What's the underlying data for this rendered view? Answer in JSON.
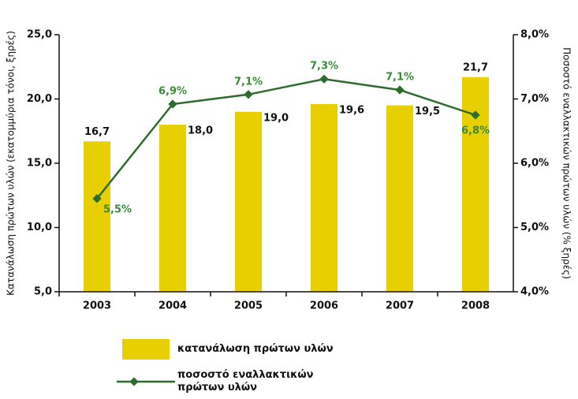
{
  "chart_data": {
    "type": "bar",
    "y_label": "Κατανάλωση πρώτων υλών (εκατομμύρια τόνοι, ξηρές)",
    "y2_label": "Ποσοστό εναλλακτικών πρώτων υλών (% ξηρές)",
    "categories": [
      "2003",
      "2004",
      "2005",
      "2006",
      "2007",
      "2008"
    ],
    "series": [
      {
        "name": "κατανάλωση πρώτων υλών",
        "color": "#e8d000",
        "values": [
          16.7,
          18.0,
          19.0,
          19.6,
          19.5,
          21.7
        ],
        "value_labels": [
          "16,7",
          "18,0",
          "19,0",
          "19,6",
          "19,5",
          "21,7"
        ]
      },
      {
        "name": "ποσοστό εναλλακτικών πρώτων υλών",
        "type": "line",
        "axis": "y2",
        "color": "#2e6b2e",
        "values": [
          5.45,
          6.92,
          7.07,
          7.31,
          7.14,
          6.75
        ],
        "value_labels": [
          "5,5%",
          "6,9%",
          "7,1%",
          "7,3%",
          "7,1%",
          "6,8%"
        ]
      }
    ],
    "ylim": [
      5,
      25
    ],
    "yticks": [
      {
        "value": 5,
        "label": "5,0"
      },
      {
        "value": 10,
        "label": "10,0"
      },
      {
        "value": 15,
        "label": "15,0"
      },
      {
        "value": 20,
        "label": "20,0"
      },
      {
        "value": 25,
        "label": "25,0"
      }
    ],
    "y2lim": [
      4,
      8
    ],
    "y2ticks": [
      {
        "value": 4,
        "label": "4,0%"
      },
      {
        "value": 5,
        "label": "5,0%"
      },
      {
        "value": 6,
        "label": "6,0%"
      },
      {
        "value": 7,
        "label": "7,0%"
      },
      {
        "value": 8,
        "label": "8,0%"
      }
    ]
  }
}
